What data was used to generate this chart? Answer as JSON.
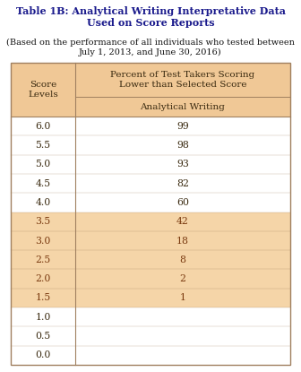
{
  "title_bold": "Table 1B: Analytical Writing Interpretative Data\nUsed on Score Reports",
  "subtitle": "(Based on the performance of all individuals who tested between\nJuly 1, 2013, and June 30, 2016)",
  "col_header_top": "Percent of Test Takers Scoring\nLower than Selected Score",
  "col_header_bottom": "Analytical Writing",
  "row_header": "Score\nLevels",
  "score_levels": [
    "6.0",
    "5.5",
    "5.0",
    "4.5",
    "4.0",
    "3.5",
    "3.0",
    "2.5",
    "2.0",
    "1.5",
    "1.0",
    "0.5",
    "0.0"
  ],
  "percentiles": [
    "99",
    "98",
    "93",
    "82",
    "60",
    "42",
    "18",
    "8",
    "2",
    "1",
    "",
    "",
    ""
  ],
  "highlighted_rows": [
    5,
    6,
    7,
    8,
    9
  ],
  "bg_color_header": "#f0c896",
  "bg_color_highlight": "#f5d5a8",
  "bg_color_white": "#ffffff",
  "border_color": "#a08060",
  "title_color": "#1a1a8c",
  "text_color_dark": "#3a2a10",
  "text_color_highlight": "#7a3a10",
  "fig_bg": "#ffffff",
  "title_fontsize": 8.0,
  "subtitle_fontsize": 7.0,
  "header_fontsize": 7.5,
  "cell_fontsize": 7.8
}
